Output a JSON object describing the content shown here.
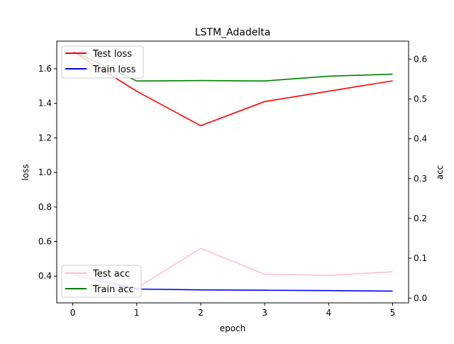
{
  "chart_data": {
    "type": "line",
    "title": "LSTM_Adadelta",
    "xlabel": "epoch",
    "ylabel_left": "loss",
    "ylabel_right": "acc",
    "x": [
      0,
      1,
      2,
      3,
      4,
      5
    ],
    "xlim": [
      -0.25,
      5.25
    ],
    "ylim_left": [
      0.245,
      1.76
    ],
    "ylim_right": [
      -0.012,
      0.645
    ],
    "xticks": [
      "0",
      "1",
      "2",
      "3",
      "4",
      "5"
    ],
    "yticks_left": [
      "0.4",
      "0.6",
      "0.8",
      "1.0",
      "1.2",
      "1.4",
      "1.6"
    ],
    "yticks_left_values": [
      0.4,
      0.6,
      0.8,
      1.0,
      1.2,
      1.4,
      1.6
    ],
    "yticks_right": [
      "0.0",
      "0.1",
      "0.2",
      "0.3",
      "0.4",
      "0.5",
      "0.6"
    ],
    "yticks_right_values": [
      0.0,
      0.1,
      0.2,
      0.3,
      0.4,
      0.5,
      0.6
    ],
    "series": [
      {
        "name": "Test loss",
        "axis": "left",
        "color": "#ff0000",
        "values": [
          1.7,
          1.47,
          1.27,
          1.41,
          1.47,
          1.53
        ]
      },
      {
        "name": "Train loss",
        "axis": "left",
        "color": "#0000ff",
        "values": [
          0.41,
          0.325,
          0.32,
          0.318,
          0.316,
          0.313
        ]
      },
      {
        "name": "Test acc",
        "axis": "right",
        "color": "#ffc0cb",
        "values": [
          0.06,
          0.025,
          0.125,
          0.06,
          0.057,
          0.066
        ]
      },
      {
        "name": "Train acc",
        "axis": "right",
        "color": "#008000",
        "values": [
          0.62,
          0.545,
          0.546,
          0.545,
          0.557,
          0.562
        ]
      }
    ],
    "legend_upper": {
      "position": "upper-left",
      "entries": [
        "Test loss",
        "Train loss"
      ]
    },
    "legend_lower": {
      "position": "lower-left",
      "entries": [
        "Test acc",
        "Train acc"
      ]
    }
  }
}
